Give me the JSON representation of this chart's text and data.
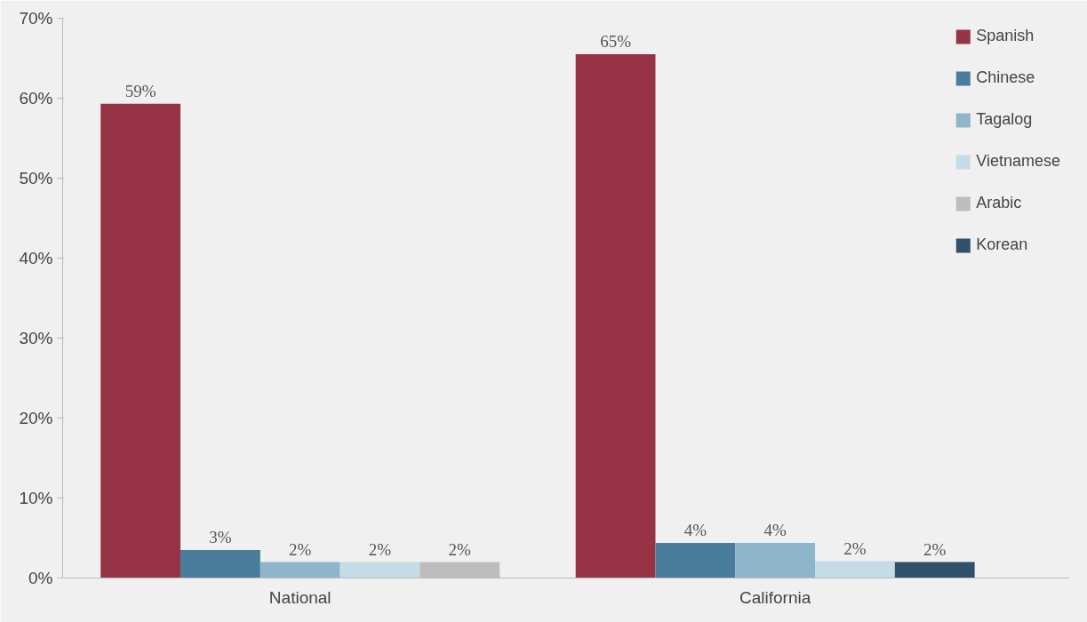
{
  "chart_data": {
    "type": "bar",
    "categories": [
      "National",
      "California"
    ],
    "series": [
      {
        "name": "Spanish",
        "color": "#963446",
        "values": [
          59.3,
          65.5
        ],
        "value_labels": [
          "59%",
          "65%"
        ]
      },
      {
        "name": "Chinese",
        "color": "#4a7d9b",
        "values": [
          3.5,
          4.4
        ],
        "value_labels": [
          "3%",
          "4%"
        ]
      },
      {
        "name": "Tagalog",
        "color": "#8fb5cb",
        "values": [
          2.0,
          4.4
        ],
        "value_labels": [
          "2%",
          "4%"
        ]
      },
      {
        "name": "Vietnamese",
        "color": "#c5dbe6",
        "values": [
          2.0,
          2.1
        ],
        "value_labels": [
          "2%",
          "2%"
        ]
      },
      {
        "name": "Arabic",
        "color": "#bdbdbd",
        "values": [
          2.0,
          null
        ],
        "value_labels": [
          "2%",
          null
        ]
      },
      {
        "name": "Korean",
        "color": "#2f5169",
        "values": [
          null,
          2.0
        ],
        "value_labels": [
          null,
          "2%"
        ]
      }
    ],
    "ylim": [
      0,
      70
    ],
    "yticks": [
      {
        "value": 0,
        "label": "0%"
      },
      {
        "value": 10,
        "label": "10%"
      },
      {
        "value": 20,
        "label": "20%"
      },
      {
        "value": 30,
        "label": "30%"
      },
      {
        "value": 40,
        "label": "40%"
      },
      {
        "value": 50,
        "label": "50%"
      },
      {
        "value": 60,
        "label": "60%"
      },
      {
        "value": 70,
        "label": "70%"
      }
    ],
    "grid": false,
    "legend": "top right"
  }
}
